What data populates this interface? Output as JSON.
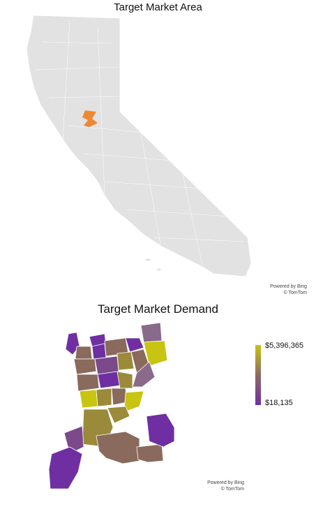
{
  "maps": [
    {
      "title": "Target Market Area",
      "attribution": [
        "Powered by Bing",
        "© TomTom"
      ],
      "base_color": "#e2e2e2",
      "highlight_color": "#f08020"
    },
    {
      "title": "Target Market Demand",
      "attribution": [
        "Powered by Bing",
        "© TomTom"
      ],
      "legend": {
        "max_label": "$5,396,365",
        "min_label": "$18,135",
        "max_color": "#c8c412",
        "mid_color": "#8d6a63",
        "min_color": "#6f2fa3"
      }
    }
  ]
}
